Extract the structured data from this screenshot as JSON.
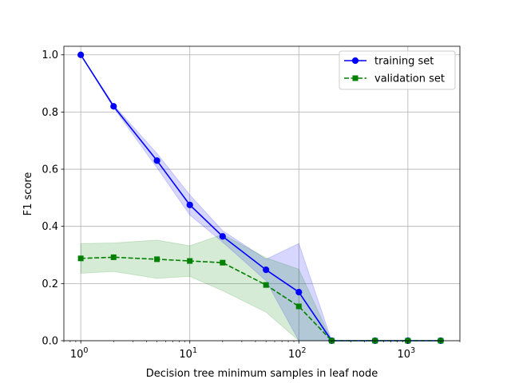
{
  "chart_data": {
    "type": "line",
    "title": "",
    "xlabel": "Decision tree minimum samples in leaf node",
    "ylabel": "F1 score",
    "xscale": "log",
    "xlim": [
      0.7,
      3000
    ],
    "ylim": [
      0,
      1.03
    ],
    "grid": true,
    "legend_position": "top-right",
    "x": [
      1,
      2,
      5,
      10,
      20,
      50,
      100,
      200,
      500,
      1000,
      2000
    ],
    "x_ticks": [
      {
        "value": 1,
        "base": "10",
        "exp": "0"
      },
      {
        "value": 10,
        "base": "10",
        "exp": "1"
      },
      {
        "value": 100,
        "base": "10",
        "exp": "2"
      },
      {
        "value": 1000,
        "base": "10",
        "exp": "3"
      }
    ],
    "y_ticks": [
      {
        "value": 0.0,
        "label": "0.0"
      },
      {
        "value": 0.2,
        "label": "0.2"
      },
      {
        "value": 0.4,
        "label": "0.4"
      },
      {
        "value": 0.6,
        "label": "0.6"
      },
      {
        "value": 0.8,
        "label": "0.8"
      },
      {
        "value": 1.0,
        "label": "1.0"
      }
    ],
    "series": [
      {
        "name": "training set",
        "color": "#0000ff",
        "marker": "circle",
        "linestyle": "solid",
        "values": [
          1.0,
          0.82,
          0.63,
          0.475,
          0.365,
          0.248,
          0.17,
          0.0,
          0.0,
          0.0,
          0.0
        ],
        "band_lower": [
          1.0,
          0.815,
          0.605,
          0.44,
          0.345,
          0.21,
          0.0,
          0.0,
          0.0,
          0.0,
          0.0
        ],
        "band_upper": [
          1.0,
          0.825,
          0.655,
          0.51,
          0.385,
          0.285,
          0.34,
          0.0,
          0.0,
          0.0,
          0.0
        ],
        "band_color": "#0000ff"
      },
      {
        "name": "validation set",
        "color": "#008000",
        "marker": "square",
        "linestyle": "dashed",
        "values": [
          0.288,
          0.292,
          0.285,
          0.279,
          0.273,
          0.195,
          0.12,
          0.0,
          0.0,
          0.0,
          0.0
        ],
        "band_lower": [
          0.236,
          0.242,
          0.218,
          0.225,
          0.175,
          0.1,
          0.0,
          0.0,
          0.0,
          0.0,
          0.0
        ],
        "band_upper": [
          0.34,
          0.342,
          0.352,
          0.332,
          0.372,
          0.29,
          0.25,
          0.0,
          0.0,
          0.0,
          0.0
        ],
        "band_color": "#008000"
      }
    ]
  }
}
